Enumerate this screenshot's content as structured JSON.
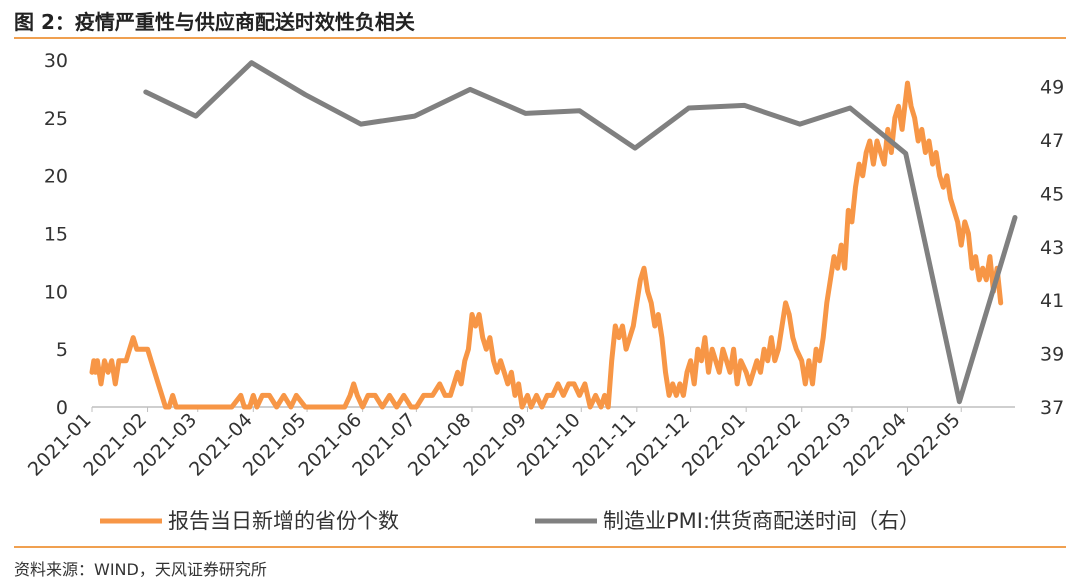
{
  "header": {
    "title": "图 2：疫情严重性与供应商配送时效性负相关"
  },
  "footer": {
    "source": "资料来源：WIND，天风证券研究所"
  },
  "colors": {
    "accent": "#f0a050",
    "orange_series": "#f79646",
    "gray_series": "#808080"
  },
  "chart_data": {
    "type": "line",
    "title": "疫情严重性与供应商配送时效性负相关",
    "x_categories": [
      "2021-01",
      "2021-02",
      "2021-03",
      "2021-04",
      "2021-05",
      "2021-06",
      "2021-07",
      "2021-08",
      "2021-09",
      "2021-10",
      "2021-11",
      "2021-12",
      "2022-01",
      "2022-02",
      "2022-03",
      "2022-04",
      "2022-05"
    ],
    "y_left": {
      "min": 0,
      "max": 30,
      "ticks": [
        0,
        5,
        10,
        15,
        20,
        25,
        30
      ]
    },
    "y_right": {
      "min": 37,
      "max": 50,
      "ticks": [
        37,
        39,
        41,
        43,
        45,
        47,
        49
      ]
    },
    "legend_position": "bottom",
    "series": [
      {
        "name": "报告当日新增的省份个数",
        "axis": "left",
        "color": "#f79646",
        "points": [
          [
            "2021-01-01",
            3
          ],
          [
            "2021-01-02",
            4
          ],
          [
            "2021-01-03",
            3
          ],
          [
            "2021-01-04",
            4
          ],
          [
            "2021-01-06",
            2
          ],
          [
            "2021-01-08",
            4
          ],
          [
            "2021-01-10",
            3
          ],
          [
            "2021-01-12",
            4
          ],
          [
            "2021-01-14",
            2
          ],
          [
            "2021-01-16",
            4
          ],
          [
            "2021-01-18",
            4
          ],
          [
            "2021-01-20",
            4
          ],
          [
            "2021-01-22",
            5
          ],
          [
            "2021-01-24",
            6
          ],
          [
            "2021-01-26",
            5
          ],
          [
            "2021-01-28",
            5
          ],
          [
            "2021-01-30",
            5
          ],
          [
            "2021-02-01",
            5
          ],
          [
            "2021-02-03",
            4
          ],
          [
            "2021-02-05",
            3
          ],
          [
            "2021-02-07",
            2
          ],
          [
            "2021-02-09",
            1
          ],
          [
            "2021-02-11",
            0
          ],
          [
            "2021-02-13",
            0
          ],
          [
            "2021-02-15",
            1
          ],
          [
            "2021-02-17",
            0
          ],
          [
            "2021-02-20",
            0
          ],
          [
            "2021-03-01",
            0
          ],
          [
            "2021-03-10",
            0
          ],
          [
            "2021-03-20",
            0
          ],
          [
            "2021-03-25",
            1
          ],
          [
            "2021-03-27",
            0
          ],
          [
            "2021-03-30",
            0
          ],
          [
            "2021-04-01",
            1
          ],
          [
            "2021-04-03",
            0
          ],
          [
            "2021-04-06",
            1
          ],
          [
            "2021-04-10",
            1
          ],
          [
            "2021-04-14",
            0
          ],
          [
            "2021-04-18",
            1
          ],
          [
            "2021-04-22",
            0
          ],
          [
            "2021-04-25",
            1
          ],
          [
            "2021-04-30",
            0
          ],
          [
            "2021-05-10",
            0
          ],
          [
            "2021-05-22",
            0
          ],
          [
            "2021-05-25",
            1
          ],
          [
            "2021-05-27",
            2
          ],
          [
            "2021-05-29",
            1
          ],
          [
            "2021-06-01",
            0
          ],
          [
            "2021-06-04",
            1
          ],
          [
            "2021-06-08",
            1
          ],
          [
            "2021-06-12",
            0
          ],
          [
            "2021-06-16",
            1
          ],
          [
            "2021-06-20",
            0
          ],
          [
            "2021-06-24",
            1
          ],
          [
            "2021-06-28",
            0
          ],
          [
            "2021-07-01",
            0
          ],
          [
            "2021-07-05",
            1
          ],
          [
            "2021-07-10",
            1
          ],
          [
            "2021-07-14",
            2
          ],
          [
            "2021-07-17",
            1
          ],
          [
            "2021-07-20",
            1
          ],
          [
            "2021-07-24",
            3
          ],
          [
            "2021-07-26",
            2
          ],
          [
            "2021-07-28",
            4
          ],
          [
            "2021-07-30",
            5
          ],
          [
            "2021-08-01",
            8
          ],
          [
            "2021-08-03",
            7
          ],
          [
            "2021-08-05",
            8
          ],
          [
            "2021-08-07",
            6
          ],
          [
            "2021-08-09",
            5
          ],
          [
            "2021-08-11",
            6
          ],
          [
            "2021-08-13",
            4
          ],
          [
            "2021-08-15",
            3
          ],
          [
            "2021-08-17",
            4
          ],
          [
            "2021-08-19",
            3
          ],
          [
            "2021-08-21",
            2
          ],
          [
            "2021-08-23",
            3
          ],
          [
            "2021-08-25",
            1
          ],
          [
            "2021-08-27",
            2
          ],
          [
            "2021-08-29",
            0
          ],
          [
            "2021-09-01",
            1
          ],
          [
            "2021-09-03",
            0
          ],
          [
            "2021-09-06",
            1
          ],
          [
            "2021-09-09",
            0
          ],
          [
            "2021-09-12",
            1
          ],
          [
            "2021-09-15",
            1
          ],
          [
            "2021-09-18",
            2
          ],
          [
            "2021-09-21",
            1
          ],
          [
            "2021-09-24",
            2
          ],
          [
            "2021-09-27",
            2
          ],
          [
            "2021-09-30",
            1
          ],
          [
            "2021-10-03",
            2
          ],
          [
            "2021-10-06",
            0
          ],
          [
            "2021-10-09",
            1
          ],
          [
            "2021-10-12",
            0
          ],
          [
            "2021-10-14",
            1
          ],
          [
            "2021-10-16",
            0
          ],
          [
            "2021-10-18",
            4
          ],
          [
            "2021-10-20",
            7
          ],
          [
            "2021-10-22",
            6
          ],
          [
            "2021-10-24",
            7
          ],
          [
            "2021-10-26",
            5
          ],
          [
            "2021-10-28",
            6
          ],
          [
            "2021-10-30",
            7
          ],
          [
            "2021-11-01",
            9
          ],
          [
            "2021-11-03",
            11
          ],
          [
            "2021-11-05",
            12
          ],
          [
            "2021-11-07",
            10
          ],
          [
            "2021-11-09",
            9
          ],
          [
            "2021-11-11",
            7
          ],
          [
            "2021-11-13",
            8
          ],
          [
            "2021-11-15",
            6
          ],
          [
            "2021-11-17",
            3
          ],
          [
            "2021-11-19",
            1
          ],
          [
            "2021-11-21",
            2
          ],
          [
            "2021-11-23",
            1
          ],
          [
            "2021-11-25",
            2
          ],
          [
            "2021-11-27",
            1
          ],
          [
            "2021-11-29",
            3
          ],
          [
            "2021-12-01",
            4
          ],
          [
            "2021-12-03",
            2
          ],
          [
            "2021-12-05",
            5
          ],
          [
            "2021-12-07",
            4
          ],
          [
            "2021-12-09",
            6
          ],
          [
            "2021-12-11",
            3
          ],
          [
            "2021-12-13",
            5
          ],
          [
            "2021-12-15",
            4
          ],
          [
            "2021-12-17",
            3
          ],
          [
            "2021-12-19",
            5
          ],
          [
            "2021-12-21",
            4
          ],
          [
            "2021-12-23",
            3
          ],
          [
            "2021-12-25",
            5
          ],
          [
            "2021-12-27",
            2
          ],
          [
            "2021-12-29",
            4
          ],
          [
            "2022-01-01",
            3
          ],
          [
            "2022-01-03",
            2
          ],
          [
            "2022-01-05",
            3
          ],
          [
            "2022-01-07",
            4
          ],
          [
            "2022-01-09",
            3
          ],
          [
            "2022-01-11",
            5
          ],
          [
            "2022-01-13",
            4
          ],
          [
            "2022-01-15",
            6
          ],
          [
            "2022-01-17",
            4
          ],
          [
            "2022-01-19",
            5
          ],
          [
            "2022-01-21",
            7
          ],
          [
            "2022-01-23",
            9
          ],
          [
            "2022-01-25",
            8
          ],
          [
            "2022-01-27",
            6
          ],
          [
            "2022-01-29",
            5
          ],
          [
            "2022-02-01",
            4
          ],
          [
            "2022-02-03",
            2
          ],
          [
            "2022-02-05",
            4
          ],
          [
            "2022-02-07",
            2
          ],
          [
            "2022-02-09",
            5
          ],
          [
            "2022-02-11",
            4
          ],
          [
            "2022-02-13",
            6
          ],
          [
            "2022-02-15",
            9
          ],
          [
            "2022-02-17",
            11
          ],
          [
            "2022-02-19",
            13
          ],
          [
            "2022-02-21",
            12
          ],
          [
            "2022-02-23",
            14
          ],
          [
            "2022-02-25",
            12
          ],
          [
            "2022-02-27",
            17
          ],
          [
            "2022-03-01",
            16
          ],
          [
            "2022-03-03",
            19
          ],
          [
            "2022-03-05",
            21
          ],
          [
            "2022-03-07",
            20
          ],
          [
            "2022-03-09",
            22
          ],
          [
            "2022-03-11",
            23
          ],
          [
            "2022-03-13",
            21
          ],
          [
            "2022-03-15",
            23
          ],
          [
            "2022-03-17",
            22
          ],
          [
            "2022-03-19",
            21
          ],
          [
            "2022-03-21",
            24
          ],
          [
            "2022-03-23",
            22
          ],
          [
            "2022-03-25",
            25
          ],
          [
            "2022-03-27",
            26
          ],
          [
            "2022-03-29",
            24
          ],
          [
            "2022-04-01",
            28
          ],
          [
            "2022-04-03",
            26
          ],
          [
            "2022-04-05",
            25
          ],
          [
            "2022-04-07",
            23
          ],
          [
            "2022-04-09",
            24
          ],
          [
            "2022-04-11",
            22
          ],
          [
            "2022-04-13",
            23
          ],
          [
            "2022-04-15",
            21
          ],
          [
            "2022-04-17",
            22
          ],
          [
            "2022-04-19",
            20
          ],
          [
            "2022-04-21",
            19
          ],
          [
            "2022-04-23",
            20
          ],
          [
            "2022-04-25",
            18
          ],
          [
            "2022-04-27",
            17
          ],
          [
            "2022-04-29",
            16
          ],
          [
            "2022-05-01",
            14
          ],
          [
            "2022-05-03",
            16
          ],
          [
            "2022-05-05",
            15
          ],
          [
            "2022-05-07",
            12
          ],
          [
            "2022-05-09",
            13
          ],
          [
            "2022-05-11",
            11
          ],
          [
            "2022-05-13",
            12
          ],
          [
            "2022-05-15",
            11
          ],
          [
            "2022-05-17",
            13
          ],
          [
            "2022-05-19",
            10
          ],
          [
            "2022-05-21",
            12
          ],
          [
            "2022-05-23",
            9
          ]
        ]
      },
      {
        "name": "制造业PMI:供货商配送时间（右）",
        "axis": "right",
        "color": "#808080",
        "points": [
          [
            "2021-01-31",
            48.8
          ],
          [
            "2021-02-28",
            47.9
          ],
          [
            "2021-03-31",
            49.9
          ],
          [
            "2021-04-30",
            48.7
          ],
          [
            "2021-05-31",
            47.6
          ],
          [
            "2021-06-30",
            47.9
          ],
          [
            "2021-07-31",
            48.9
          ],
          [
            "2021-08-31",
            48.0
          ],
          [
            "2021-09-30",
            48.1
          ],
          [
            "2021-10-31",
            46.7
          ],
          [
            "2021-11-30",
            48.2
          ],
          [
            "2021-12-31",
            48.3
          ],
          [
            "2022-01-31",
            47.6
          ],
          [
            "2022-02-28",
            48.2
          ],
          [
            "2022-03-31",
            46.5
          ],
          [
            "2022-04-30",
            37.2
          ],
          [
            "2022-05-31",
            44.1
          ]
        ]
      }
    ]
  }
}
